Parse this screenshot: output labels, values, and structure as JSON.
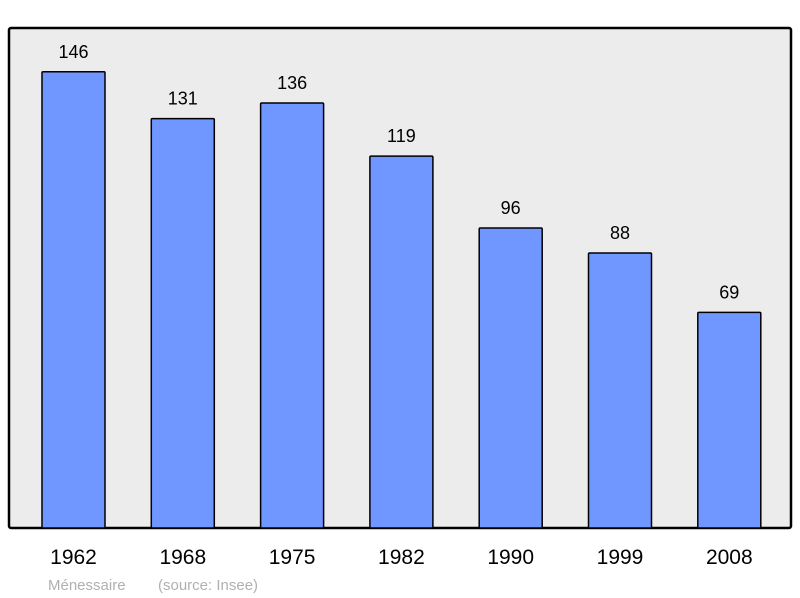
{
  "chart_data": {
    "type": "bar",
    "categories": [
      "1962",
      "1968",
      "1975",
      "1982",
      "1990",
      "1999",
      "2008"
    ],
    "values": [
      146,
      131,
      136,
      119,
      96,
      88,
      69
    ],
    "title": "",
    "xlabel": "",
    "ylabel": "",
    "ylim": [
      0,
      160
    ],
    "grid": false,
    "colors": {
      "bar": "#7096ff",
      "background": "#ececec",
      "frame": "#000000"
    }
  },
  "footer": {
    "place": "Ménessaire",
    "source": "(source: Insee)"
  }
}
